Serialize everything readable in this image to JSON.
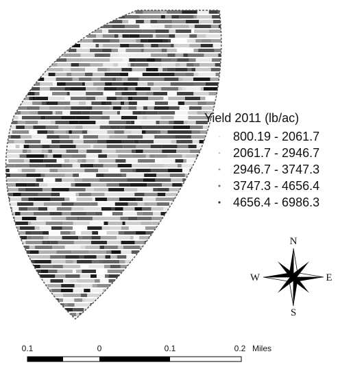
{
  "legend": {
    "title": "Yield 2011 (lb/ac)",
    "classes": [
      "800.19 - 2061.7",
      "2061.7 - 2946.7",
      "2946.7 - 3747.3",
      "3747.3 - 4656.4",
      "4656.4 - 6986.3"
    ]
  },
  "compass": {
    "north": "N",
    "south": "S",
    "east": "E",
    "west": "W"
  },
  "scale_bar": {
    "labels": [
      "0.1",
      "0",
      "0.1",
      "0.2"
    ],
    "unit": "Miles"
  }
}
